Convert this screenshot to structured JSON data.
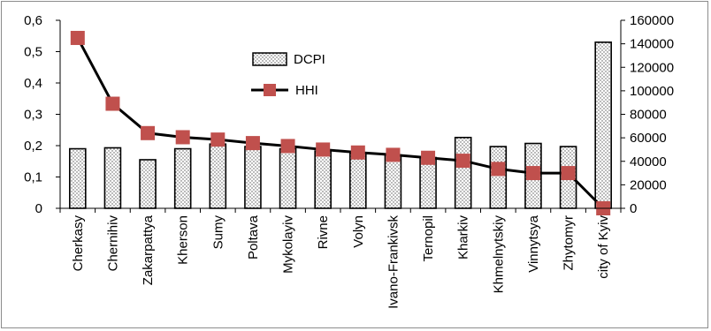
{
  "chart_data": {
    "type": "bar",
    "categories": [
      "Cherkasy",
      "Chernihiv",
      "Zakarpattya",
      "Kherson",
      "Sumy",
      "Poltava",
      "Mykolayiv",
      "Rivne",
      "Volyn",
      "Ivano-Frankivsk",
      "Ternopil",
      "Kharkiv",
      "Khmelnytskiy",
      "Vinnytsya",
      "Zhytomyr",
      "city of Kyiv"
    ],
    "series": [
      {
        "name": "DCPI",
        "type": "bar",
        "axis": "left",
        "values": [
          0.19,
          0.193,
          0.155,
          0.19,
          0.205,
          0.197,
          0.19,
          0.183,
          0.175,
          0.17,
          0.162,
          0.226,
          0.197,
          0.207,
          0.197,
          0.53
        ],
        "color": "#000000",
        "fill_pattern": "dotted"
      },
      {
        "name": "HHI",
        "type": "line",
        "axis": "right",
        "values": [
          145000,
          89000,
          64000,
          60500,
          58500,
          55500,
          53000,
          50000,
          47500,
          45500,
          43000,
          40500,
          33500,
          30000,
          30000,
          0
        ],
        "line_color": "#000000",
        "marker_color": "#C0504D"
      }
    ],
    "y_left": {
      "ylim": [
        0,
        0.6
      ],
      "ticks": [
        "0",
        "0,1",
        "0,2",
        "0,3",
        "0,4",
        "0,5",
        "0,6"
      ]
    },
    "y_right": {
      "ylim": [
        0,
        160000
      ],
      "ticks": [
        "0",
        "20000",
        "40000",
        "60000",
        "80000",
        "100000",
        "120000",
        "140000",
        "160000"
      ]
    },
    "title": "",
    "xlabel": "",
    "ylabel": "",
    "grid": false,
    "legend": {
      "placement": "top-center"
    }
  }
}
